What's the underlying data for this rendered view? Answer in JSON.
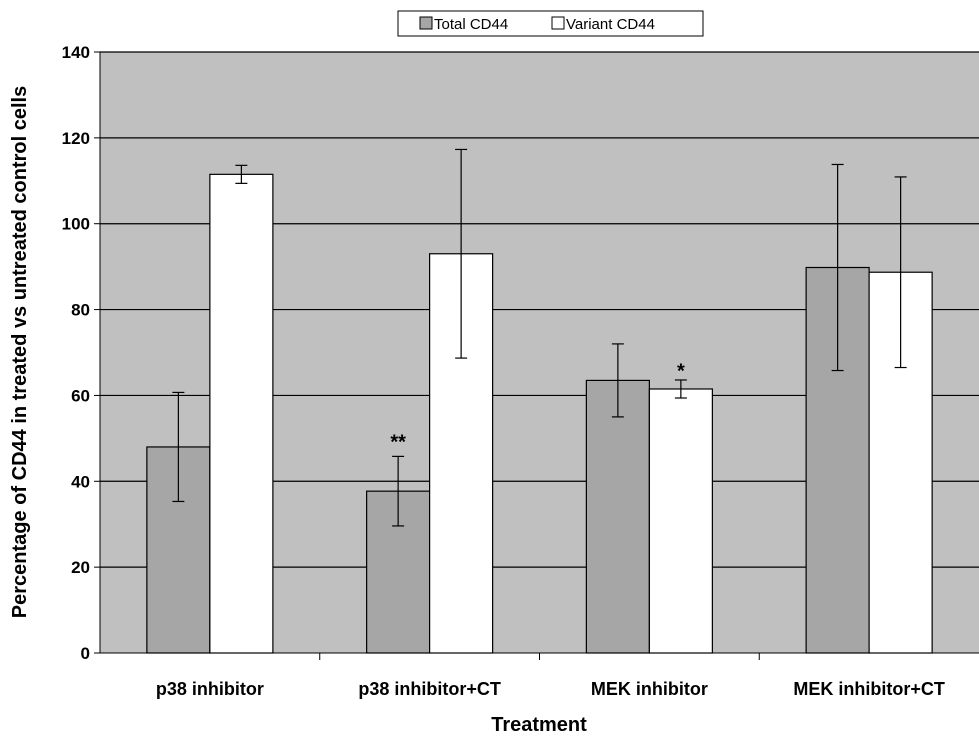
{
  "chart_data": {
    "type": "bar",
    "title": "",
    "xlabel": "Treatment",
    "ylabel": "Percentage of CD44 in treated vs untreated control cells",
    "ylim": [
      0,
      140
    ],
    "yticks": [
      0,
      20,
      40,
      60,
      80,
      100,
      120,
      140
    ],
    "grid": true,
    "legend_position": "top-center",
    "categories": [
      "p38 inhibitor",
      "p38 inhibitor+CT",
      "MEK inhibitor",
      "MEK inhibitor+CT"
    ],
    "series": [
      {
        "name": "Total CD44",
        "color": "#a6a6a6",
        "values": [
          48,
          37.7,
          63.5,
          89.8
        ],
        "errors": [
          12.7,
          8.1,
          8.5,
          24
        ]
      },
      {
        "name": "Variant CD44",
        "color": "#ffffff",
        "values": [
          111.5,
          93,
          61.5,
          88.7
        ],
        "errors": [
          2.1,
          24.3,
          2.1,
          22.2
        ]
      }
    ],
    "annotations": [
      {
        "text": "**",
        "category": 1,
        "series": 0,
        "y": 50
      },
      {
        "text": "*",
        "category": 2,
        "series": 1,
        "y": 66.5
      }
    ],
    "plot_background": "#c0c0c0"
  }
}
